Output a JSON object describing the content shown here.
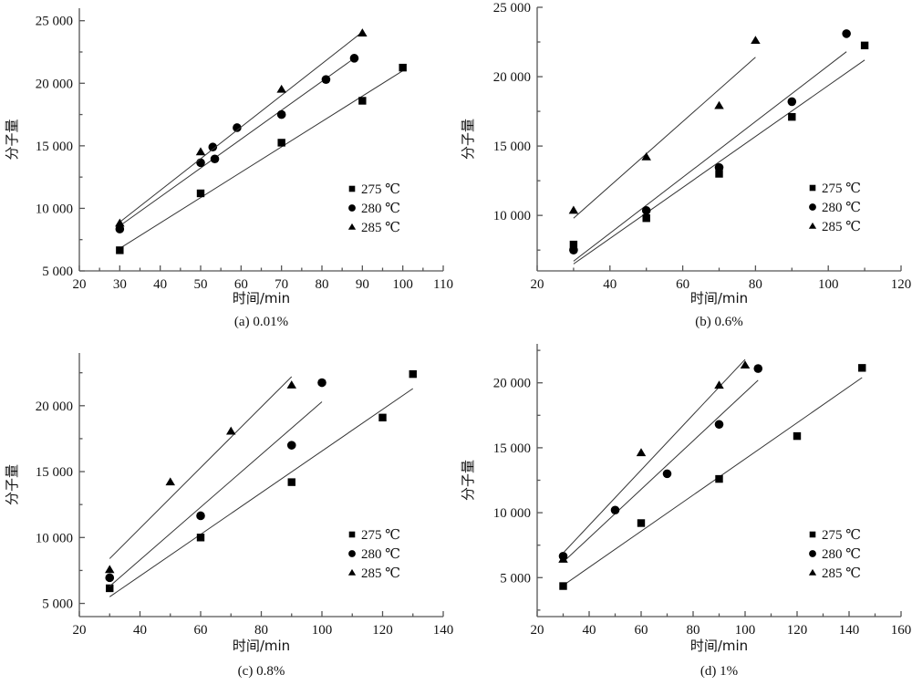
{
  "figure": {
    "legend_labels": [
      "275 ℃",
      "280 ℃",
      "285 ℃"
    ],
    "marker_types": [
      "square",
      "circle",
      "triangle"
    ]
  },
  "chart_data": [
    {
      "type": "scatter",
      "panel": "a",
      "caption": "(a) 0.01%",
      "xlabel": "时间/min",
      "ylabel": "分子量",
      "xlim": [
        20,
        110
      ],
      "ylim": [
        5000,
        26000
      ],
      "xticks": [
        20,
        30,
        40,
        50,
        60,
        70,
        80,
        90,
        100,
        110
      ],
      "xtick_labels": [
        "20",
        "30",
        "40",
        "50",
        "60",
        "70",
        "80",
        "90",
        "100",
        "110"
      ],
      "yticks": [
        5000,
        10000,
        15000,
        20000,
        25000
      ],
      "ytick_labels": [
        "5 000",
        "10 000",
        "15 000",
        "20 000",
        "25 000"
      ],
      "legend_position": "center-right",
      "grid": false,
      "series": [
        {
          "name": "275 ℃",
          "marker": "square",
          "x": [
            30,
            50,
            70,
            90,
            100
          ],
          "y": [
            6650,
            11200,
            15250,
            18600,
            21250
          ],
          "fit": {
            "x": [
              30,
              100
            ],
            "y": [
              6800,
              21000
            ]
          }
        },
        {
          "name": "280 ℃",
          "marker": "circle",
          "x": [
            30,
            50,
            53,
            53.5,
            59,
            70,
            81,
            88
          ],
          "y": [
            8350,
            13650,
            14900,
            13950,
            16450,
            17500,
            20300,
            22000
          ],
          "fit": {
            "x": [
              30,
              88
            ],
            "y": [
              8600,
              22000
            ]
          }
        },
        {
          "name": "285 ℃",
          "marker": "triangle",
          "x": [
            30,
            50,
            70,
            90
          ],
          "y": [
            8800,
            14500,
            19500,
            24000
          ],
          "fit": {
            "x": [
              30,
              90
            ],
            "y": [
              8900,
              24100
            ]
          }
        }
      ]
    },
    {
      "type": "scatter",
      "panel": "b",
      "caption": "(b) 0.6%",
      "xlabel": "时间/min",
      "ylabel": "分子量",
      "xlim": [
        20,
        120
      ],
      "ylim": [
        6000,
        25000
      ],
      "xticks": [
        20,
        40,
        60,
        80,
        100,
        120
      ],
      "xtick_labels": [
        "20",
        "40",
        "60",
        "80",
        "100",
        "120"
      ],
      "yticks": [
        10000,
        15000,
        20000,
        25000
      ],
      "ytick_labels": [
        "10 000",
        "15 000",
        "20 000",
        "25 000"
      ],
      "legend_position": "center-right",
      "grid": false,
      "series": [
        {
          "name": "275 ℃",
          "marker": "square",
          "x": [
            30,
            50,
            70,
            90,
            110
          ],
          "y": [
            7900,
            9800,
            13000,
            17100,
            22250
          ],
          "fit": {
            "x": [
              30,
              110
            ],
            "y": [
              6500,
              21200
            ]
          }
        },
        {
          "name": "280 ℃",
          "marker": "circle",
          "x": [
            30,
            50,
            70,
            90,
            105
          ],
          "y": [
            7500,
            10350,
            13450,
            18200,
            23100
          ],
          "fit": {
            "x": [
              30,
              105
            ],
            "y": [
              6700,
              21800
            ]
          }
        },
        {
          "name": "285 ℃",
          "marker": "triangle",
          "x": [
            30,
            50,
            70,
            80
          ],
          "y": [
            10350,
            14200,
            17900,
            22600
          ],
          "fit": {
            "x": [
              30,
              80
            ],
            "y": [
              9800,
              21400
            ]
          }
        }
      ]
    },
    {
      "type": "scatter",
      "panel": "c",
      "caption": "(c) 0.8%",
      "xlabel": "时间/min",
      "ylabel": "分子量",
      "xlim": [
        20,
        140
      ],
      "ylim": [
        4000,
        24000
      ],
      "xticks": [
        20,
        40,
        60,
        80,
        100,
        120,
        140
      ],
      "xtick_labels": [
        "20",
        "40",
        "60",
        "80",
        "100",
        "120",
        "140"
      ],
      "yticks": [
        5000,
        10000,
        15000,
        20000
      ],
      "ytick_labels": [
        "5 000",
        "10 000",
        "15 000",
        "20 000"
      ],
      "legend_position": "center-right",
      "grid": false,
      "series": [
        {
          "name": "275 ℃",
          "marker": "square",
          "x": [
            30,
            60,
            90,
            120,
            130
          ],
          "y": [
            6150,
            10000,
            14200,
            19100,
            22400
          ],
          "fit": {
            "x": [
              30,
              130
            ],
            "y": [
              5500,
              21300
            ]
          }
        },
        {
          "name": "280 ℃",
          "marker": "circle",
          "x": [
            30,
            60,
            90,
            100
          ],
          "y": [
            6950,
            11650,
            17000,
            21750
          ],
          "fit": {
            "x": [
              30,
              100
            ],
            "y": [
              6300,
              20300
            ]
          }
        },
        {
          "name": "285 ℃",
          "marker": "triangle",
          "x": [
            30,
            50,
            70,
            90
          ],
          "y": [
            7550,
            14200,
            18050,
            21550
          ],
          "fit": {
            "x": [
              30,
              90
            ],
            "y": [
              8400,
              22200
            ]
          }
        }
      ]
    },
    {
      "type": "scatter",
      "panel": "d",
      "caption": "(d) 1%",
      "xlabel": "时间/min",
      "ylabel": "分子量",
      "xlim": [
        20,
        160
      ],
      "ylim": [
        2000,
        23000
      ],
      "xticks": [
        20,
        40,
        60,
        80,
        100,
        120,
        140,
        160
      ],
      "xtick_labels": [
        "20",
        "40",
        "60",
        "80",
        "100",
        "120",
        "140",
        "160"
      ],
      "yticks": [
        5000,
        10000,
        15000,
        20000
      ],
      "ytick_labels": [
        "5 000",
        "10 000",
        "15 000",
        "20 000"
      ],
      "legend_position": "bottom-right",
      "grid": false,
      "series": [
        {
          "name": "275 ℃",
          "marker": "square",
          "x": [
            30,
            60,
            90,
            120,
            145
          ],
          "y": [
            4350,
            9200,
            12600,
            15900,
            21150
          ],
          "fit": {
            "x": [
              30,
              145
            ],
            "y": [
              4400,
              20400
            ]
          }
        },
        {
          "name": "280 ℃",
          "marker": "circle",
          "x": [
            30,
            50,
            70,
            90,
            105
          ],
          "y": [
            6650,
            10200,
            13000,
            16800,
            21100
          ],
          "fit": {
            "x": [
              30,
              105
            ],
            "y": [
              6200,
              20200
            ]
          }
        },
        {
          "name": "285 ℃",
          "marker": "triangle",
          "x": [
            30,
            60,
            90,
            100
          ],
          "y": [
            6400,
            14600,
            19800,
            21350
          ],
          "fit": {
            "x": [
              30,
              100
            ],
            "y": [
              6900,
              21800
            ]
          }
        }
      ]
    }
  ]
}
